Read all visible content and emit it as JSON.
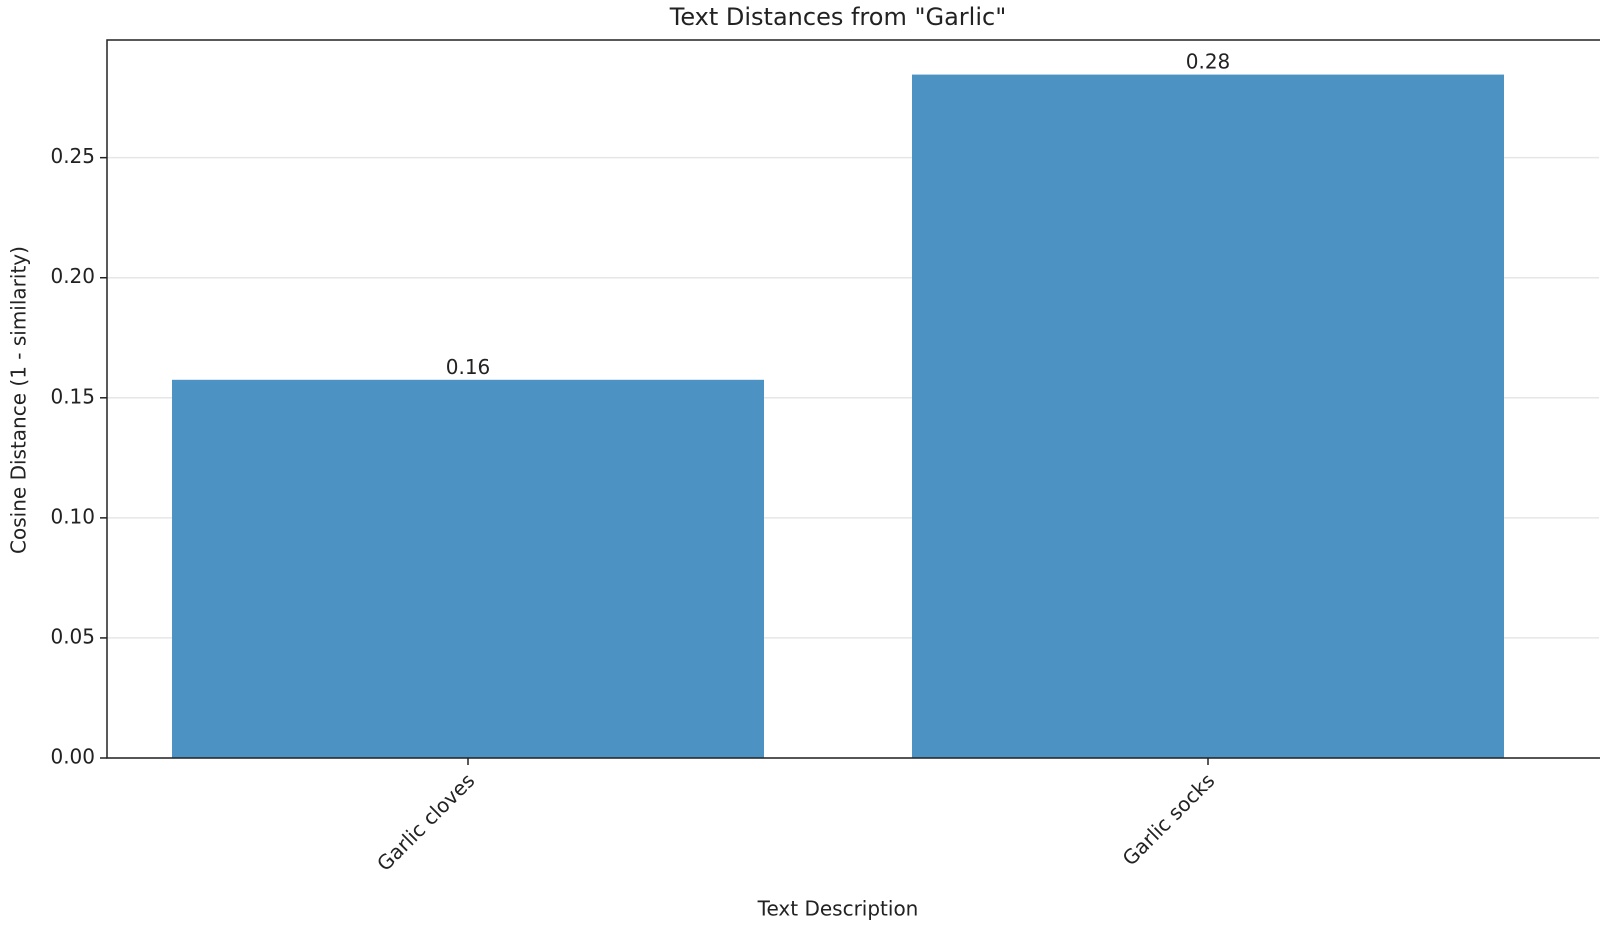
{
  "chart_data": {
    "type": "bar",
    "title": "Text Distances from \"Garlic\"",
    "x_label": "Text Description",
    "y_label": "Cosine Distance (1 - similarity)",
    "categories": [
      "Garlic cloves",
      "Garlic socks"
    ],
    "values": [
      0.1575,
      0.2846
    ],
    "value_labels": [
      "0.16",
      "0.28"
    ],
    "color": "#4c92c3",
    "ylim": [
      0,
      0.299
    ],
    "yticks": [
      {
        "value": 0,
        "label": "0.00"
      },
      {
        "value": 0.05,
        "label": "0.05"
      },
      {
        "value": 0.1,
        "label": "0.10"
      },
      {
        "value": 0.15,
        "label": "0.15"
      },
      {
        "value": 0.2,
        "label": "0.20"
      },
      {
        "value": 0.25,
        "label": "0.25"
      }
    ],
    "grid": true
  }
}
